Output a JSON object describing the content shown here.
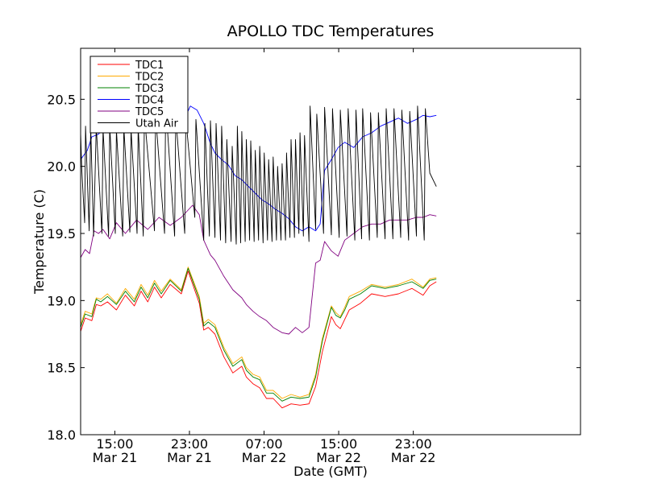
{
  "chart_data": {
    "type": "line",
    "title": "APOLLO TDC Temperatures",
    "xlabel": "Date (GMT)",
    "ylabel": "Temperature (C)",
    "xlim": [
      0,
      2.233
    ],
    "ylim": [
      18.0,
      20.88
    ],
    "grid": false,
    "legend_position": "top-left",
    "x_unit": "days since Mar 21 11:20 GMT",
    "x_ticks": [
      {
        "x": 0.1528,
        "time": "15:00",
        "date": "Mar 21"
      },
      {
        "x": 0.4861,
        "time": "23:00",
        "date": "Mar 21"
      },
      {
        "x": 0.8194,
        "time": "07:00",
        "date": "Mar 22"
      },
      {
        "x": 1.1528,
        "time": "15:00",
        "date": "Mar 22"
      },
      {
        "x": 1.4861,
        "time": "23:00",
        "date": "Mar 22"
      }
    ],
    "y_ticks": [
      {
        "v": 18.0,
        "label": "18.0"
      },
      {
        "v": 18.5,
        "label": "18.5"
      },
      {
        "v": 19.0,
        "label": "19.0"
      },
      {
        "v": 19.5,
        "label": "19.5"
      },
      {
        "v": 20.0,
        "label": "20.0"
      },
      {
        "v": 20.5,
        "label": "20.5"
      }
    ],
    "series": [
      {
        "name": "TDC1",
        "color": "#ff0000",
        "x": [
          0,
          0.02,
          0.05,
          0.07,
          0.09,
          0.12,
          0.16,
          0.2,
          0.24,
          0.27,
          0.3,
          0.33,
          0.36,
          0.4,
          0.45,
          0.48,
          0.53,
          0.55,
          0.57,
          0.6,
          0.64,
          0.68,
          0.72,
          0.74,
          0.77,
          0.8,
          0.83,
          0.86,
          0.9,
          0.94,
          0.98,
          1.02,
          1.05,
          1.08,
          1.12,
          1.14,
          1.16,
          1.18,
          1.2,
          1.25,
          1.3,
          1.36,
          1.42,
          1.48,
          1.53,
          1.56,
          1.589
        ],
        "y": [
          18.77,
          18.87,
          18.85,
          18.97,
          18.96,
          18.99,
          18.93,
          19.04,
          18.96,
          19.07,
          18.99,
          19.1,
          19.02,
          19.12,
          19.05,
          19.22,
          18.98,
          18.78,
          18.8,
          18.75,
          18.58,
          18.46,
          18.51,
          18.43,
          18.38,
          18.35,
          18.27,
          18.27,
          18.2,
          18.23,
          18.22,
          18.23,
          18.36,
          18.62,
          18.88,
          18.82,
          18.79,
          18.86,
          18.93,
          18.98,
          19.05,
          19.03,
          19.05,
          19.09,
          19.04,
          19.11,
          19.14
        ]
      },
      {
        "name": "TDC2",
        "color": "#ffaa00",
        "x": [
          0,
          0.02,
          0.05,
          0.07,
          0.09,
          0.12,
          0.16,
          0.2,
          0.24,
          0.27,
          0.3,
          0.33,
          0.36,
          0.4,
          0.45,
          0.48,
          0.53,
          0.55,
          0.57,
          0.6,
          0.64,
          0.68,
          0.72,
          0.74,
          0.77,
          0.8,
          0.83,
          0.86,
          0.9,
          0.94,
          0.98,
          1.02,
          1.05,
          1.08,
          1.12,
          1.14,
          1.16,
          1.18,
          1.2,
          1.25,
          1.3,
          1.36,
          1.42,
          1.48,
          1.53,
          1.56,
          1.589
        ],
        "y": [
          18.82,
          18.92,
          18.9,
          19.02,
          19.01,
          19.05,
          18.98,
          19.09,
          19.01,
          19.12,
          19.04,
          19.15,
          19.07,
          19.16,
          19.08,
          19.25,
          19.03,
          18.83,
          18.86,
          18.82,
          18.65,
          18.53,
          18.58,
          18.5,
          18.45,
          18.43,
          18.33,
          18.33,
          18.27,
          18.3,
          18.28,
          18.3,
          18.45,
          18.72,
          18.96,
          18.91,
          18.88,
          18.95,
          19.03,
          19.07,
          19.12,
          19.1,
          19.12,
          19.16,
          19.1,
          19.16,
          19.17
        ]
      },
      {
        "name": "TDC3",
        "color": "#008000",
        "x": [
          0,
          0.02,
          0.05,
          0.07,
          0.09,
          0.12,
          0.16,
          0.2,
          0.24,
          0.27,
          0.3,
          0.33,
          0.36,
          0.4,
          0.45,
          0.48,
          0.53,
          0.55,
          0.57,
          0.6,
          0.64,
          0.68,
          0.72,
          0.74,
          0.77,
          0.8,
          0.83,
          0.86,
          0.9,
          0.94,
          0.98,
          1.02,
          1.05,
          1.08,
          1.12,
          1.14,
          1.16,
          1.18,
          1.2,
          1.25,
          1.3,
          1.36,
          1.42,
          1.48,
          1.53,
          1.56,
          1.589
        ],
        "y": [
          18.8,
          18.9,
          18.88,
          19.01,
          18.99,
          19.03,
          18.97,
          19.07,
          18.99,
          19.1,
          19.02,
          19.13,
          19.05,
          19.15,
          19.07,
          19.24,
          19.01,
          18.81,
          18.84,
          18.8,
          18.63,
          18.51,
          18.56,
          18.48,
          18.43,
          18.41,
          18.31,
          18.31,
          18.25,
          18.28,
          18.27,
          18.28,
          18.43,
          18.7,
          18.95,
          18.89,
          18.87,
          18.93,
          19.01,
          19.05,
          19.11,
          19.09,
          19.11,
          19.14,
          19.09,
          19.15,
          19.16
        ]
      },
      {
        "name": "TDC4",
        "color": "#0000ff",
        "x": [
          0,
          0.03,
          0.05,
          0.08,
          0.1,
          0.13,
          0.16,
          0.2,
          0.25,
          0.3,
          0.35,
          0.4,
          0.43,
          0.46,
          0.49,
          0.52,
          0.55,
          0.58,
          0.6,
          0.63,
          0.66,
          0.69,
          0.72,
          0.75,
          0.78,
          0.81,
          0.84,
          0.87,
          0.9,
          0.93,
          0.96,
          0.99,
          1.02,
          1.05,
          1.07,
          1.09,
          1.12,
          1.15,
          1.18,
          1.22,
          1.26,
          1.3,
          1.34,
          1.38,
          1.42,
          1.46,
          1.5,
          1.53,
          1.56,
          1.589
        ],
        "y": [
          20.05,
          20.12,
          20.22,
          20.24,
          20.28,
          20.32,
          20.35,
          20.3,
          20.33,
          20.28,
          20.27,
          20.3,
          20.37,
          20.34,
          20.45,
          20.42,
          20.32,
          20.17,
          20.1,
          20.05,
          20.01,
          19.93,
          19.9,
          19.85,
          19.8,
          19.75,
          19.72,
          19.68,
          19.65,
          19.61,
          19.55,
          19.52,
          19.55,
          19.52,
          19.57,
          19.97,
          20.05,
          20.14,
          20.18,
          20.14,
          20.22,
          20.25,
          20.3,
          20.33,
          20.36,
          20.32,
          20.35,
          20.38,
          20.37,
          20.38
        ]
      },
      {
        "name": "TDC5",
        "color": "#800080",
        "x": [
          0,
          0.02,
          0.04,
          0.06,
          0.08,
          0.1,
          0.13,
          0.16,
          0.2,
          0.25,
          0.3,
          0.35,
          0.4,
          0.45,
          0.5,
          0.53,
          0.55,
          0.58,
          0.6,
          0.64,
          0.68,
          0.72,
          0.74,
          0.77,
          0.8,
          0.83,
          0.86,
          0.9,
          0.93,
          0.96,
          0.99,
          1.02,
          1.05,
          1.07,
          1.09,
          1.12,
          1.15,
          1.18,
          1.22,
          1.26,
          1.3,
          1.34,
          1.38,
          1.42,
          1.46,
          1.5,
          1.53,
          1.56,
          1.589
        ],
        "y": [
          19.32,
          19.38,
          19.35,
          19.52,
          19.5,
          19.53,
          19.46,
          19.58,
          19.5,
          19.6,
          19.53,
          19.62,
          19.56,
          19.62,
          19.71,
          19.64,
          19.45,
          19.34,
          19.3,
          19.18,
          19.08,
          19.02,
          18.97,
          18.92,
          18.88,
          18.85,
          18.8,
          18.76,
          18.75,
          18.8,
          18.76,
          18.8,
          19.28,
          19.3,
          19.44,
          19.37,
          19.33,
          19.45,
          19.5,
          19.55,
          19.57,
          19.57,
          19.6,
          19.6,
          19.6,
          19.62,
          19.62,
          19.64,
          19.63
        ]
      },
      {
        "name": "Utah Air",
        "color": "#000000",
        "x": [
          0,
          0.005,
          0.018,
          0.022,
          0.038,
          0.045,
          0.058,
          0.07,
          0.095,
          0.1,
          0.125,
          0.13,
          0.155,
          0.16,
          0.188,
          0.193,
          0.22,
          0.225,
          0.252,
          0.257,
          0.28,
          0.285,
          0.33,
          0.335,
          0.375,
          0.38,
          0.42,
          0.425,
          0.465,
          0.47,
          0.51,
          0.515,
          0.55,
          0.555,
          0.575,
          0.58,
          0.6,
          0.605,
          0.625,
          0.63,
          0.648,
          0.653,
          0.672,
          0.677,
          0.695,
          0.7,
          0.715,
          0.72,
          0.735,
          0.74,
          0.755,
          0.76,
          0.775,
          0.78,
          0.795,
          0.8,
          0.815,
          0.82,
          0.835,
          0.84,
          0.855,
          0.86,
          0.875,
          0.88,
          0.895,
          0.9,
          0.915,
          0.92,
          0.935,
          0.94,
          0.955,
          0.96,
          0.975,
          0.98,
          0.995,
          1.0,
          1.02,
          1.025,
          1.05,
          1.055,
          1.085,
          1.09,
          1.12,
          1.125,
          1.155,
          1.16,
          1.19,
          1.195,
          1.225,
          1.23,
          1.255,
          1.26,
          1.29,
          1.295,
          1.325,
          1.33,
          1.36,
          1.365,
          1.395,
          1.4,
          1.43,
          1.435,
          1.465,
          1.47,
          1.5,
          1.505,
          1.535,
          1.54,
          1.56,
          1.589
        ],
        "y": [
          20.25,
          19.98,
          19.58,
          20.3,
          19.52,
          20.3,
          19.48,
          20.3,
          19.5,
          20.28,
          19.48,
          20.3,
          19.5,
          20.27,
          19.48,
          20.29,
          19.51,
          20.28,
          19.5,
          20.3,
          19.48,
          20.38,
          19.52,
          20.38,
          19.5,
          20.47,
          19.48,
          20.37,
          19.5,
          20.36,
          19.62,
          20.35,
          19.45,
          20.32,
          19.48,
          20.34,
          19.47,
          20.32,
          19.45,
          20.3,
          19.43,
          20.2,
          19.44,
          20.15,
          19.42,
          20.3,
          19.43,
          20.26,
          19.44,
          20.2,
          19.45,
          20.19,
          19.44,
          20.12,
          19.45,
          20.15,
          19.43,
          20.1,
          19.45,
          20.05,
          19.44,
          20.07,
          19.45,
          20.0,
          19.45,
          20.02,
          19.45,
          20.1,
          19.47,
          20.2,
          19.47,
          20.2,
          19.5,
          20.25,
          19.48,
          20.23,
          19.44,
          20.45,
          19.53,
          20.39,
          19.5,
          20.44,
          19.49,
          20.43,
          19.47,
          20.42,
          19.48,
          20.43,
          19.45,
          20.42,
          19.46,
          20.43,
          19.45,
          20.4,
          19.47,
          20.4,
          19.46,
          20.43,
          19.46,
          20.43,
          19.47,
          20.42,
          19.45,
          20.41,
          19.48,
          20.45,
          19.45,
          20.43,
          19.95,
          19.85
        ]
      }
    ]
  }
}
